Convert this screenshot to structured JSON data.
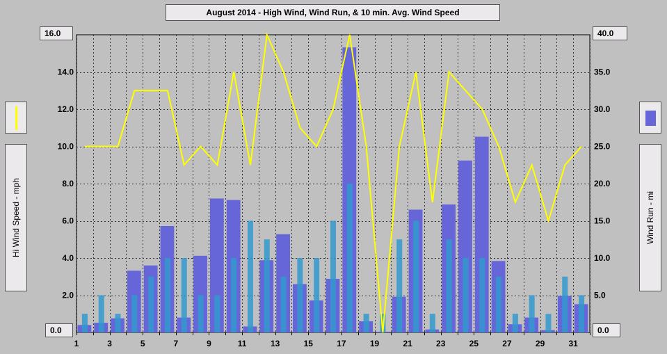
{
  "title": "August 2014 - High Wind, Wind Run, & 10 min. Avg. Wind Speed",
  "chart_data": {
    "type": "bar",
    "title": "August 2014 - High Wind, Wind Run, & 10 min. Avg. Wind Speed",
    "ylabel_left": "Hi Wind Speed - mph",
    "ylabel_right": "Wind Run - mi",
    "ylim_left": [
      0,
      16
    ],
    "ylim_right": [
      0,
      40
    ],
    "left_ticks": [
      "0.0",
      "2.0",
      "4.0",
      "6.0",
      "8.0",
      "10.0",
      "12.0",
      "14.0",
      "16.0"
    ],
    "right_ticks": [
      "0.0",
      "5.0",
      "10.0",
      "15.0",
      "20.0",
      "25.0",
      "30.0",
      "35.0",
      "40.0"
    ],
    "x_ticks": [
      "1",
      "3",
      "5",
      "7",
      "9",
      "11",
      "13",
      "15",
      "17",
      "19",
      "21",
      "23",
      "25",
      "27",
      "29",
      "31"
    ],
    "xlim": [
      1,
      32
    ],
    "grid": true,
    "colors": {
      "high_wind": "#ffff00",
      "wind_run": "#6666d9",
      "avg_speed": "#3399cc"
    },
    "days": [
      1,
      2,
      3,
      4,
      5,
      6,
      7,
      8,
      9,
      10,
      11,
      12,
      13,
      14,
      15,
      16,
      17,
      18,
      19,
      20,
      21,
      22,
      23,
      24,
      25,
      26,
      27,
      28,
      29,
      30,
      31
    ],
    "series": [
      {
        "name": "High Wind",
        "axis": "left",
        "type": "line",
        "values": [
          10,
          10,
          10,
          13,
          13,
          13,
          9,
          10,
          9,
          14,
          9,
          16,
          14,
          11,
          10,
          12,
          16,
          10,
          0,
          10,
          14,
          7,
          14,
          13,
          12,
          10,
          7,
          9,
          6,
          9,
          10
        ]
      },
      {
        "name": "Wind Run",
        "axis": "right",
        "type": "bar",
        "values": [
          1.0,
          1.3,
          1.9,
          8.3,
          9.0,
          14.3,
          2.0,
          10.3,
          18.0,
          17.8,
          0.8,
          9.7,
          13.2,
          6.5,
          4.3,
          7.2,
          38.3,
          1.5,
          0.1,
          4.8,
          16.5,
          0.4,
          17.2,
          23.1,
          26.3,
          9.6,
          1.1,
          2.0,
          0.3,
          4.9,
          3.8
        ]
      },
      {
        "name": "10 min. Avg. Wind Speed",
        "axis": "left",
        "type": "bar",
        "values": [
          1,
          2,
          1,
          2,
          3,
          4,
          4,
          2,
          2,
          4,
          6,
          5,
          3,
          4,
          4,
          6,
          8,
          1,
          1,
          5,
          6,
          1,
          5,
          4,
          4,
          3,
          1,
          2,
          1,
          3,
          2
        ]
      }
    ]
  }
}
